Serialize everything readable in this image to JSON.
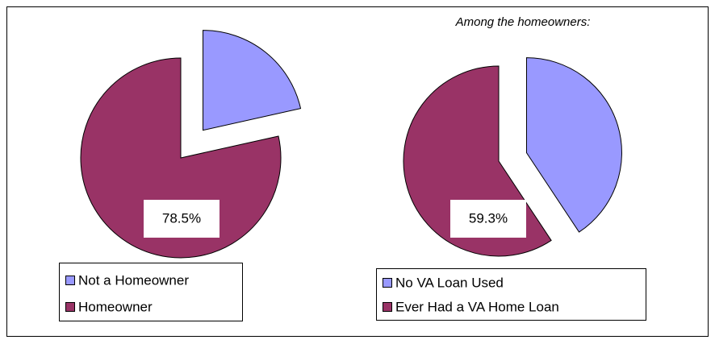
{
  "chart_data": [
    {
      "type": "pie",
      "categories": [
        "Not a Homeowner",
        "Homeowner"
      ],
      "values": [
        21.5,
        78.5
      ],
      "value_labels": [
        null,
        "78.5%"
      ],
      "colors": [
        "#9999ff",
        "#993366"
      ]
    },
    {
      "type": "pie",
      "subtitle": "Among the homeowners:",
      "categories": [
        "No VA Loan Used",
        "Ever Had a VA Home Loan"
      ],
      "values": [
        40.7,
        59.3
      ],
      "value_labels": [
        null,
        "59.3%"
      ],
      "colors": [
        "#9999ff",
        "#993366"
      ]
    }
  ]
}
